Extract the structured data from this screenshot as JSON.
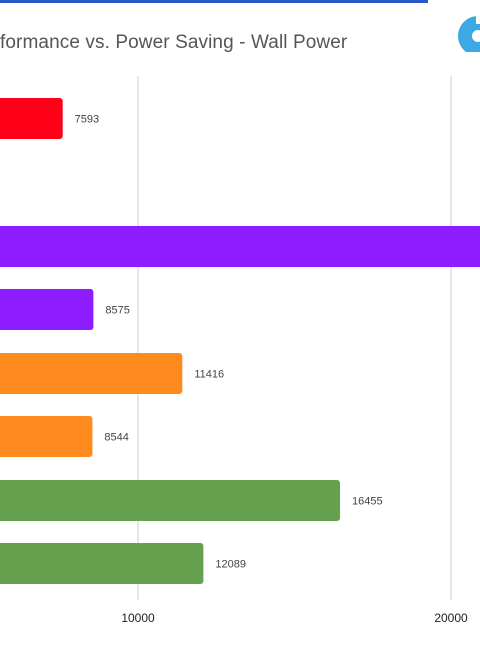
{
  "chart_data": {
    "type": "bar",
    "orientation": "horizontal",
    "title": "formance vs. Power Saving - Wall Power",
    "xlim": [
      5500,
      21000
    ],
    "grid": true,
    "x_ticks": [
      {
        "value": 10000,
        "label": "10000"
      },
      {
        "value": 20000,
        "label": "20000"
      }
    ],
    "bars": [
      {
        "value": 7593,
        "label": "7593",
        "color": "#ff0019"
      },
      {
        "value": 21000,
        "label": "",
        "color": "#8e1cff"
      },
      {
        "value": 8575,
        "label": "8575",
        "color": "#8e1cff"
      },
      {
        "value": 11416,
        "label": "11416",
        "color": "#ff8a1d"
      },
      {
        "value": 8544,
        "label": "8544",
        "color": "#ff8a1d"
      },
      {
        "value": 16455,
        "label": "16455",
        "color": "#65a14e"
      },
      {
        "value": 12089,
        "label": "12089",
        "color": "#65a14e"
      }
    ]
  },
  "logo": {
    "icon": "logo-icon",
    "color": "#3aa9e4"
  }
}
